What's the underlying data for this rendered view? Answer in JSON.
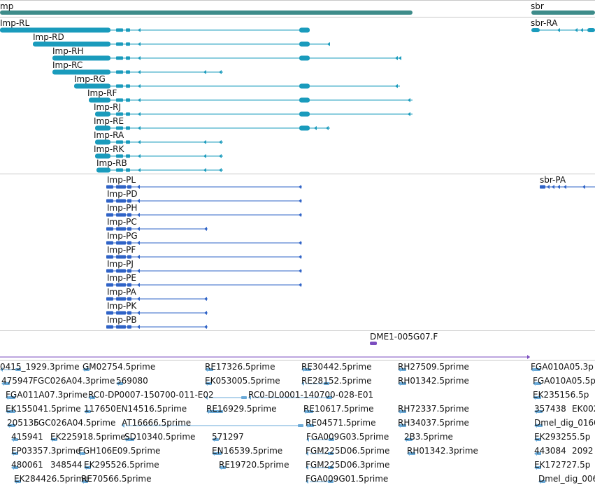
{
  "colors": {
    "gene": "#3e8c8a",
    "transcript": "#1a9bbc",
    "protein": "#2f63c7",
    "est": "#6aaad8",
    "clone": "#7b4dbf",
    "separator": "#c8c8c8"
  },
  "genes": {
    "imp_label": "mp",
    "sbr_label": "sbr"
  },
  "transcripts": [
    "Imp-RL",
    "Imp-RD",
    "Imp-RH",
    "Imp-RC",
    "Imp-RG",
    "Imp-RF",
    "Imp-RJ",
    "Imp-RE",
    "Imp-RA",
    "Imp-RK",
    "Imp-RB"
  ],
  "sbr_transcript": "sbr-RA",
  "proteins": [
    "Imp-PL",
    "Imp-PD",
    "Imp-PH",
    "Imp-PC",
    "Imp-PG",
    "Imp-PF",
    "Imp-PJ",
    "Imp-PE",
    "Imp-PA",
    "Imp-PK",
    "Imp-PB"
  ],
  "sbr_protein": "sbr-PA",
  "clone": "DME1-005G07.F",
  "est_rows": [
    [
      "0415_1929.3prime",
      "GM02754.5prime",
      "RE17326.5prime",
      "RE30442.5prime",
      "RH27509.5prime",
      "FGA010A05.3p"
    ],
    [
      "475947",
      "FGC026A04.3prime",
      "569080",
      "EK053005.5prime",
      "RE28152.5prime",
      "RH01342.5prime",
      "FGA010A05.5p"
    ],
    [
      "FGA011A07.3prime",
      "RC0-DP0007-150700-011-E02",
      "RC0-DL0001-140700-028-E01",
      "EK235156.5p"
    ],
    [
      "EK155041.5prime",
      "117650",
      "EN14516.5prime",
      "RE16929.5prime",
      "RE10617.5prime",
      "RH72337.5prime",
      "357438",
      "EK002"
    ],
    [
      "205135",
      "FGC026A04.5prime",
      "AT16666.5prime",
      "RE04571.5prime",
      "RH34037.5prime",
      "Dmel_dig_0160"
    ],
    [
      "415941",
      "EK225918.5prime",
      "SD10340.5prime",
      "571297",
      "FGA009G03.5prime",
      "2B3.5prime",
      "EK293255.5p"
    ],
    [
      "EP03357.3prime",
      "FGH106E09.5prime",
      "EN16539.5prime",
      "FGM225D06.5prime",
      "RH01342.3prime",
      "443084",
      "2092"
    ],
    [
      "480061",
      "348544",
      "EK295526.5prime",
      "RE19720.5prime",
      "FGM225D06.3prime",
      "EK172727.5p"
    ],
    [
      "EK284426.5prime",
      "RE70566.5prime",
      "FGA009G01.5prime",
      "Dmel_dig_006"
    ]
  ]
}
